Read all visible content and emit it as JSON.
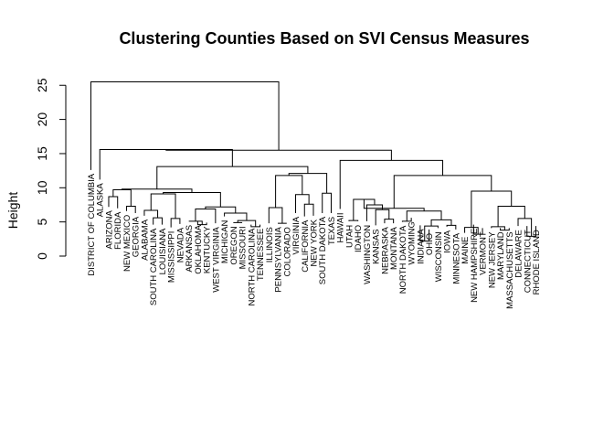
{
  "chart_data": {
    "type": "dendrogram",
    "title": "Clustering Counties Based on SVI Census Measures",
    "xlabel": "",
    "ylabel": "Height",
    "ylim": [
      0,
      25
    ],
    "yticks": [
      0,
      5,
      10,
      15,
      20,
      25
    ],
    "grid": false,
    "leaves": [
      "DISTRICT OF COLUMBIA",
      "ALASKA",
      "ARIZONA",
      "FLORIDA",
      "NEW MEXICO",
      "GEORGIA",
      "ALABAMA",
      "SOUTH CAROLINA",
      "LOUISIANA",
      "MISSISSIPPI",
      "NEVADA",
      "ARKANSAS",
      "OKLAHOMA",
      "KENTUCKY",
      "WEST VIRGINIA",
      "MICHIGAN",
      "OREGON",
      "MISSOURI",
      "NORTH CAROLINA",
      "TENNESSEE",
      "ILLINOIS",
      "PENNSYLVANIA",
      "COLORADO",
      "VIRGINIA",
      "CALIFORNIA",
      "NEW YORK",
      "SOUTH DAKOTA",
      "TEXAS",
      "HAWAII",
      "UTAH",
      "IDAHO",
      "WASHINGTON",
      "KANSAS",
      "NEBRASKA",
      "MONTANA",
      "NORTH DAKOTA",
      "WYOMING",
      "INDIANA",
      "OHIO",
      "WISCONSIN",
      "IOWA",
      "MINNESOTA",
      "MAINE",
      "NEW HAMPSHIRE",
      "VERMONT",
      "NEW JERSEY",
      "MARYLAND",
      "MASSACHUSETTS",
      "DELAWARE",
      "CONNECTICUT",
      "RHODE ISLAND"
    ],
    "leaf_heights": [
      12.6,
      11.2,
      7.2,
      7.0,
      6.6,
      6.3,
      5.9,
      4.6,
      4.6,
      4.2,
      4.7,
      5.1,
      5.1,
      4.9,
      4.8,
      5.8,
      4.9,
      4.9,
      4.6,
      4.6,
      4.8,
      4.8,
      4.8,
      6.3,
      5.8,
      5.9,
      6.3,
      6.3,
      6.9,
      5.1,
      5.1,
      5.1,
      4.5,
      4.8,
      4.8,
      5.0,
      5.6,
      4.5,
      3.9,
      4.1,
      4.3,
      3.9,
      3.4,
      4.6,
      4.1,
      4.1,
      4.1,
      4.1,
      4.4,
      4.4,
      4.4
    ],
    "merges": [
      {
        "a": "L:ARIZONA",
        "b": "L:FLORIDA",
        "height": 8.7
      },
      {
        "a": "L:NEW MEXICO",
        "b": "L:GEORGIA",
        "height": 7.3
      },
      {
        "a": "M:0",
        "b": "M:1",
        "height": 9.7
      },
      {
        "a": "L:SOUTH CAROLINA",
        "b": "L:LOUISIANA",
        "height": 5.6
      },
      {
        "a": "L:ALABAMA",
        "b": "M:3",
        "height": 6.7
      },
      {
        "a": "L:MISSISSIPPI",
        "b": "L:NEVADA",
        "height": 5.5
      },
      {
        "a": "M:4",
        "b": "M:5",
        "height": 9.1
      },
      {
        "a": "L:OKLAHOMA",
        "b": "L:KENTUCKY",
        "height": 4.6
      },
      {
        "a": "L:ARKANSAS",
        "b": "M:7",
        "height": 5.1
      },
      {
        "a": "M:8",
        "b": "L:WEST VIRGINIA",
        "height": 6.9
      },
      {
        "a": "L:OREGON",
        "b": "L:MISSOURI",
        "height": 4.9
      },
      {
        "a": "L:NORTH CAROLINA",
        "b": "L:TENNESSEE",
        "height": 4.3
      },
      {
        "a": "M:10",
        "b": "M:11",
        "height": 5.2
      },
      {
        "a": "L:MICHIGAN",
        "b": "M:12",
        "height": 6.3
      },
      {
        "a": "M:9",
        "b": "M:13",
        "height": 7.2
      },
      {
        "a": "M:6",
        "b": "M:14",
        "height": 9.3
      },
      {
        "a": "M:2",
        "b": "M:15",
        "height": 9.8
      },
      {
        "a": "L:PENNSYLVANIA",
        "b": "L:COLORADO",
        "height": 4.8
      },
      {
        "a": "L:ILLINOIS",
        "b": "M:17",
        "height": 7.1
      },
      {
        "a": "L:CALIFORNIA",
        "b": "L:NEW YORK",
        "height": 7.6
      },
      {
        "a": "L:VIRGINIA",
        "b": "M:19",
        "height": 9.0
      },
      {
        "a": "M:18",
        "b": "M:20",
        "height": 11.8
      },
      {
        "a": "L:SOUTH DAKOTA",
        "b": "L:TEXAS",
        "height": 9.2
      },
      {
        "a": "M:21",
        "b": "M:22",
        "height": 12.1
      },
      {
        "a": "M:16",
        "b": "M:23",
        "height": 13.1
      },
      {
        "a": "L:ALASKA",
        "b": "M:24",
        "height": 15.6
      },
      {
        "a": "L:UTAH",
        "b": "L:IDAHO",
        "height": 5.2
      },
      {
        "a": "L:NEBRASKA",
        "b": "L:MONTANA",
        "height": 5.4
      },
      {
        "a": "L:KANSAS",
        "b": "M:27",
        "height": 6.8
      },
      {
        "a": "L:WASHINGTON",
        "b": "M:28",
        "height": 7.5
      },
      {
        "a": "M:26",
        "b": "M:29",
        "height": 8.3
      },
      {
        "a": "L:NORTH DAKOTA",
        "b": "L:WYOMING",
        "height": 5.1
      },
      {
        "a": "L:INDIANA",
        "b": "L:OHIO",
        "height": 2.2
      },
      {
        "a": "M:32",
        "b": "L:WISCONSIN",
        "height": 4.4
      },
      {
        "a": "L:IOWA",
        "b": "L:MINNESOTA",
        "height": 4.5
      },
      {
        "a": "M:33",
        "b": "M:34",
        "height": 5.3
      },
      {
        "a": "M:31",
        "b": "M:35",
        "height": 6.6
      },
      {
        "a": "M:30",
        "b": "M:36",
        "height": 7.0
      },
      {
        "a": "L:NEW HAMPSHIRE",
        "b": "L:VERMONT",
        "height": 3.2
      },
      {
        "a": "L:MAINE",
        "b": "M:38",
        "height": 4.2
      },
      {
        "a": "L:MARYLAND",
        "b": "L:MASSACHUSETTS",
        "height": 3.8
      },
      {
        "a": "L:NEW JERSEY",
        "b": "M:40",
        "height": 4.3
      },
      {
        "a": "L:CONNECTICUT",
        "b": "L:RHODE ISLAND",
        "height": 2.9
      },
      {
        "a": "L:DELAWARE",
        "b": "M:42",
        "height": 5.5
      },
      {
        "a": "M:41",
        "b": "M:43",
        "height": 7.3
      },
      {
        "a": "M:39",
        "b": "M:44",
        "height": 9.5
      },
      {
        "a": "M:37",
        "b": "M:45",
        "height": 11.8
      },
      {
        "a": "L:HAWAII",
        "b": "M:46",
        "height": 14.0
      },
      {
        "a": "M:25",
        "b": "M:47",
        "height": 15.5
      },
      {
        "a": "L:DISTRICT OF COLUMBIA",
        "b": "M:48",
        "height": 25.5
      }
    ]
  }
}
